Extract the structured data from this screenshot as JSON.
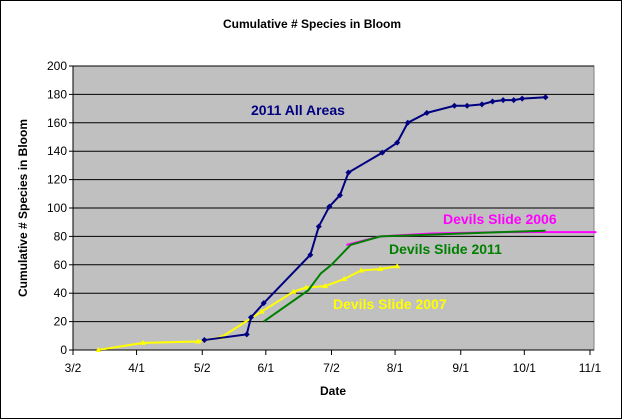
{
  "chart_data": {
    "type": "line",
    "title": "Cumulative # Species in Bloom",
    "xlabel": "Date",
    "ylabel": "Cumulative # Species in Bloom",
    "ylim": [
      0,
      200
    ],
    "yticks": [
      0,
      20,
      40,
      60,
      80,
      100,
      120,
      140,
      160,
      180,
      200
    ],
    "xlim": [
      "3/2",
      "11/1"
    ],
    "xticks": [
      "3/2",
      "4/1",
      "5/2",
      "6/1",
      "7/2",
      "8/1",
      "9/1",
      "10/1",
      "11/1"
    ],
    "grid": "horizontal",
    "plot_background": "#c0c0c0",
    "series": [
      {
        "name": "Devils Slide 2007",
        "color": "#ffff00",
        "marker": "triangle",
        "x": [
          "3/14",
          "4/4",
          "4/30",
          "5/11",
          "5/30",
          "6/14",
          "6/20",
          "6/29",
          "7/8",
          "7/16",
          "7/25",
          "8/2"
        ],
        "y": [
          0,
          5,
          6,
          9,
          27,
          41,
          44,
          45,
          50,
          56,
          57,
          59
        ]
      },
      {
        "name": "Devils Slide 2006",
        "color": "#ff00ff",
        "marker": "none",
        "x": [
          "7/9",
          "7/25",
          "8/18",
          "9/20",
          "11/4"
        ],
        "y": [
          74,
          80,
          82,
          83,
          83
        ]
      },
      {
        "name": "Devils Slide 2011",
        "color": "#008000",
        "marker": "none",
        "x": [
          "5/31",
          "6/21",
          "6/27",
          "7/2",
          "7/11",
          "7/25",
          "8/13",
          "9/20",
          "10/11"
        ],
        "y": [
          20,
          42,
          54,
          60,
          74,
          80,
          81,
          83,
          84
        ]
      },
      {
        "name": "2011 All Areas",
        "color": "#000080",
        "marker": "diamond",
        "x": [
          "5/3",
          "5/23",
          "5/25",
          "5/31",
          "6/22",
          "6/26",
          "7/1",
          "7/6",
          "7/10",
          "7/26",
          "8/2",
          "8/7",
          "8/16",
          "8/29",
          "9/4",
          "9/11",
          "9/16",
          "9/21",
          "9/26",
          "9/30",
          "10/11"
        ],
        "y": [
          7,
          11,
          23,
          33,
          67,
          87,
          101,
          109,
          125,
          139,
          146,
          160,
          167,
          172,
          172,
          173,
          175,
          176,
          176,
          177,
          178
        ]
      }
    ],
    "annotations": [
      {
        "text": "2011 All Areas",
        "color": "#000080"
      },
      {
        "text": "Devils Slide 2006",
        "color": "#ff00ff"
      },
      {
        "text": "Devils Slide 2011",
        "color": "#008000"
      },
      {
        "text": "Devils Slide 2007",
        "color": "#ffff00"
      }
    ]
  }
}
